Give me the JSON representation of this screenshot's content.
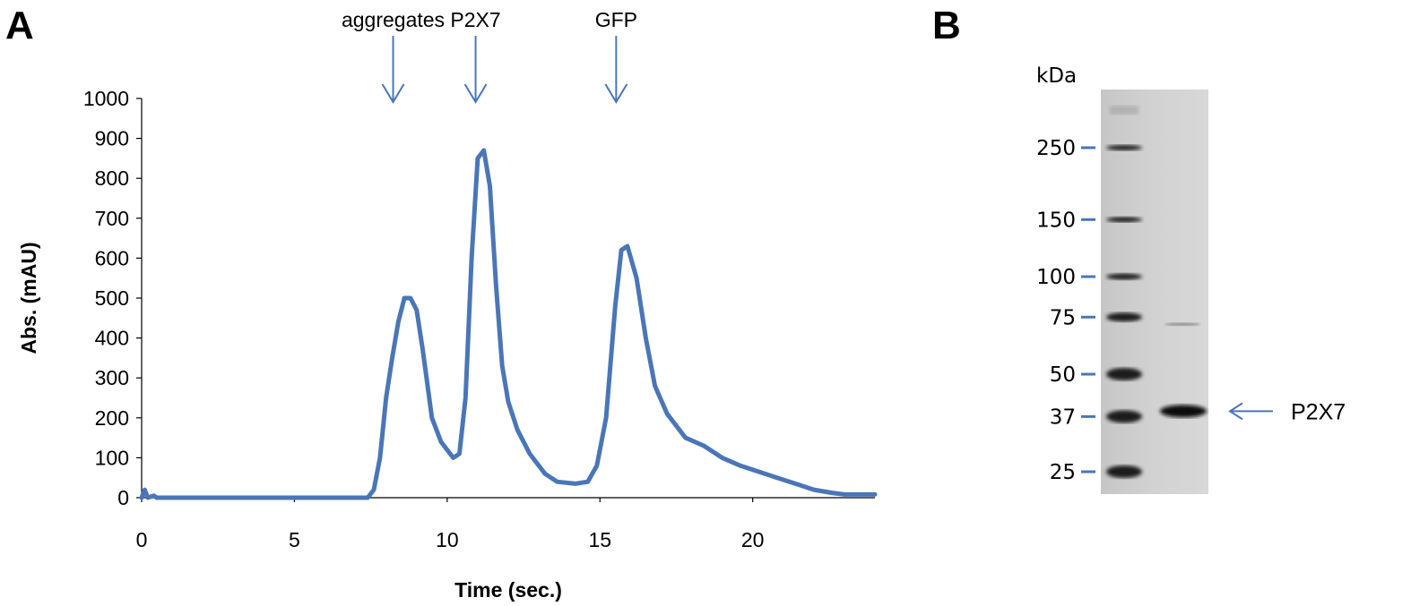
{
  "panel_a": {
    "label": "A",
    "chart_data": {
      "type": "line",
      "title": "",
      "xlabel": "Time (sec.)",
      "ylabel": "Abs. (mAU)",
      "xlim": [
        0,
        24
      ],
      "ylim": [
        0,
        1000
      ],
      "x_ticks": [
        0,
        5,
        10,
        15,
        20
      ],
      "y_ticks": [
        0,
        100,
        200,
        300,
        400,
        500,
        600,
        700,
        800,
        900,
        1000
      ],
      "grid": false,
      "series_color": "#4a76b8",
      "series": [
        {
          "x": [
            0,
            0.1,
            0.2,
            0.4,
            0.5,
            1,
            5,
            7.4,
            7.6,
            7.8,
            8.0,
            8.2,
            8.4,
            8.6,
            8.8,
            9.0,
            9.2,
            9.5,
            9.8,
            10.2,
            10.4,
            10.6,
            10.8,
            11.0,
            11.2,
            11.4,
            11.6,
            11.8,
            12.0,
            12.3,
            12.7,
            13.2,
            13.6,
            14.2,
            14.6,
            14.9,
            15.2,
            15.5,
            15.7,
            15.9,
            16.2,
            16.5,
            16.8,
            17.2,
            17.8,
            18.4,
            19.0,
            19.6,
            20.2,
            20.8,
            21.4,
            22.0,
            22.6,
            23.0,
            24.0
          ],
          "y": [
            0,
            20,
            0,
            5,
            0,
            0,
            0,
            0,
            20,
            100,
            250,
            350,
            440,
            500,
            500,
            470,
            370,
            200,
            140,
            100,
            110,
            250,
            600,
            850,
            870,
            780,
            530,
            330,
            240,
            170,
            110,
            60,
            40,
            35,
            40,
            80,
            200,
            480,
            620,
            630,
            550,
            400,
            280,
            210,
            150,
            130,
            100,
            80,
            65,
            50,
            35,
            20,
            12,
            8,
            8
          ]
        }
      ],
      "annotations": [
        {
          "text": "aggregates",
          "x": 8.7
        },
        {
          "text": "P2X7",
          "x": 11.4
        },
        {
          "text": "GFP",
          "x": 16.0
        }
      ]
    }
  },
  "panel_b": {
    "label": "B",
    "unit_label": "kDa",
    "markers": [
      {
        "label": "250",
        "kda": 250
      },
      {
        "label": "150",
        "kda": 150
      },
      {
        "label": "100",
        "kda": 100
      },
      {
        "label": "75",
        "kda": 75
      },
      {
        "label": "50",
        "kda": 50
      },
      {
        "label": "37",
        "kda": 37
      },
      {
        "label": "25",
        "kda": 25
      }
    ],
    "band_label": "P2X7",
    "arrow_color": "#4a76b8"
  }
}
